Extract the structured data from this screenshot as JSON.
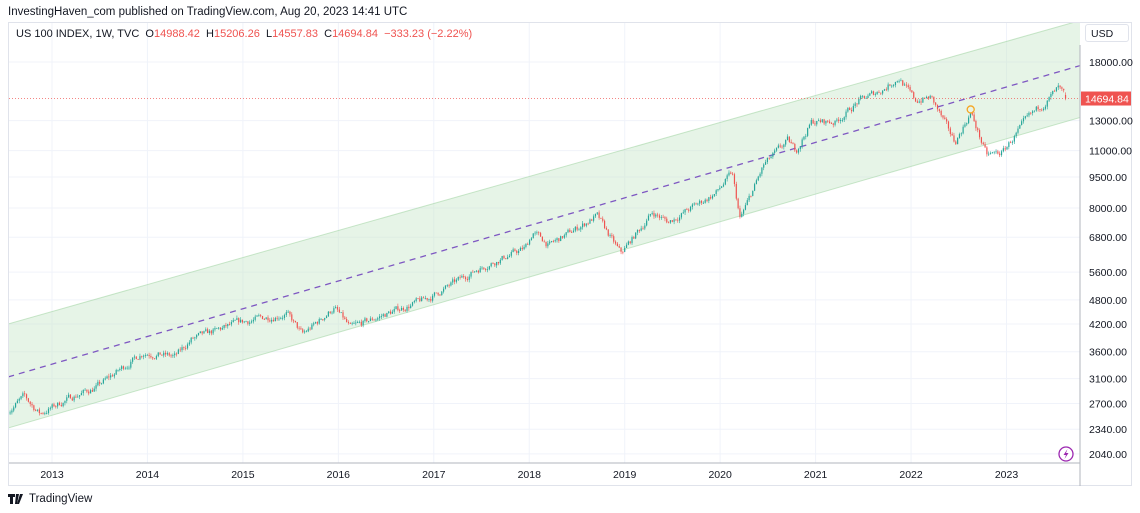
{
  "header": {
    "published": "InvestingHaven_com published on TradingView.com, Aug 20, 2023 14:41 UTC"
  },
  "legend": {
    "symbol": "US 100 INDEX, 1W, TVC",
    "o_label": "O",
    "o": "14988.42",
    "h_label": "H",
    "h": "15206.26",
    "l_label": "L",
    "l": "14557.83",
    "c_label": "C",
    "c": "14694.84",
    "change": "−333.23 (−2.22%)"
  },
  "currency_button": "USD",
  "brand": "TradingView",
  "colors": {
    "up": "#26a69a",
    "down": "#ef5350",
    "channel_fill": "#c8e6c9",
    "midline": "#7e57c2",
    "price_line": "#ef5350"
  },
  "icons": {
    "brand": "tradingview-logo",
    "bottom_right": "lightning-icon"
  },
  "chart_data": {
    "type": "candlestick",
    "interval": "1W",
    "y_scale": "log",
    "ylim": [
      1900,
      23000
    ],
    "xlim": [
      "2012-07",
      "2023-10"
    ],
    "grid": true,
    "y_ticks": [
      "18000.00",
      "13000.00",
      "11000.00",
      "9500.00",
      "8000.00",
      "6800.00",
      "5600.00",
      "4800.00",
      "4200.00",
      "3600.00",
      "3100.00",
      "2700.00",
      "2340.00",
      "2040.00"
    ],
    "x_ticks": [
      "2013",
      "2014",
      "2015",
      "2016",
      "2017",
      "2018",
      "2019",
      "2020",
      "2021",
      "2022",
      "2023"
    ],
    "last_price_label": "14694.84",
    "last_candle": {
      "open": 14988.42,
      "high": 15206.26,
      "low": 14557.83,
      "close": 14694.84
    },
    "approx_closes": [
      [
        "2012-07",
        2600
      ],
      [
        "2012-09",
        2800
      ],
      [
        "2012-11",
        2550
      ],
      [
        "2013-03",
        2800
      ],
      [
        "2013-06",
        2950
      ],
      [
        "2013-12",
        3590
      ],
      [
        "2014-04",
        3500
      ],
      [
        "2014-06",
        3850
      ],
      [
        "2014-12",
        4230
      ],
      [
        "2015-06",
        4450
      ],
      [
        "2015-08",
        3950
      ],
      [
        "2015-12",
        4600
      ],
      [
        "2016-02",
        4100
      ],
      [
        "2016-06",
        4400
      ],
      [
        "2016-12",
        4860
      ],
      [
        "2017-06",
        5700
      ],
      [
        "2017-12",
        6400
      ],
      [
        "2018-01",
        7000
      ],
      [
        "2018-03",
        6500
      ],
      [
        "2018-09",
        7650
      ],
      [
        "2018-12",
        6200
      ],
      [
        "2019-04",
        7800
      ],
      [
        "2019-06",
        7400
      ],
      [
        "2019-12",
        8700
      ],
      [
        "2020-02",
        9700
      ],
      [
        "2020-03",
        7500
      ],
      [
        "2020-06",
        10150
      ],
      [
        "2020-09",
        11600
      ],
      [
        "2020-10",
        11000
      ],
      [
        "2020-12",
        12900
      ],
      [
        "2021-03",
        12900
      ],
      [
        "2021-06",
        14500
      ],
      [
        "2021-09",
        15500
      ],
      [
        "2021-11",
        16500
      ],
      [
        "2022-01",
        14500
      ],
      [
        "2022-03",
        14800
      ],
      [
        "2022-06",
        11500
      ],
      [
        "2022-08",
        13600
      ],
      [
        "2022-10",
        10700
      ],
      [
        "2022-12",
        10900
      ],
      [
        "2023-03",
        13000
      ],
      [
        "2023-07",
        15500
      ],
      [
        "2023-08",
        14694.84
      ]
    ],
    "channel": {
      "upper": [
        [
          "2012-07",
          4200
        ],
        [
          "2023-10",
          22730
        ]
      ],
      "middle": [
        [
          "2012-07",
          3130
        ],
        [
          "2023-10",
          17700
        ]
      ],
      "lower": [
        [
          "2012-07",
          2357
        ],
        [
          "2023-10",
          13270
        ]
      ]
    },
    "annotations": [
      {
        "type": "circle",
        "date": "2022-08",
        "price": 13600
      }
    ]
  }
}
